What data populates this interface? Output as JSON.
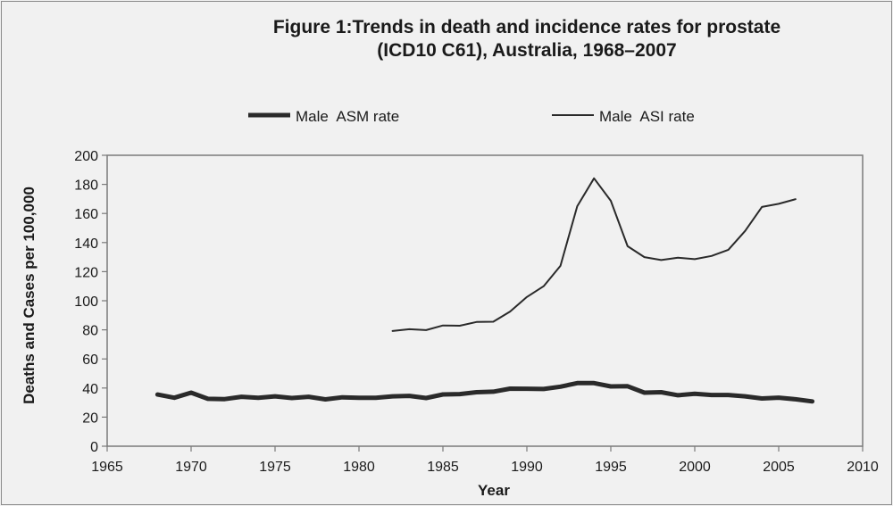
{
  "chart_data": {
    "type": "line",
    "title": [
      "Figure 1:Trends in death and incidence rates for prostate",
      "(ICD10 C61), Australia, 1968–2007"
    ],
    "xlabel": "Year",
    "ylabel": "Deaths and Cases per 100,000",
    "xlim": [
      1965,
      2010
    ],
    "ylim": [
      0,
      200
    ],
    "xticks": [
      1965,
      1970,
      1975,
      1980,
      1985,
      1990,
      1995,
      2000,
      2005,
      2010
    ],
    "yticks": [
      0,
      20,
      40,
      60,
      80,
      100,
      120,
      140,
      160,
      180,
      200
    ],
    "legend_position": "top",
    "series": [
      {
        "name": "Male  ASM rate",
        "color": "#2a2a2a",
        "x": [
          1968,
          1969,
          1970,
          1971,
          1972,
          1973,
          1974,
          1975,
          1976,
          1977,
          1978,
          1979,
          1980,
          1981,
          1982,
          1983,
          1984,
          1985,
          1986,
          1987,
          1988,
          1989,
          1990,
          1991,
          1992,
          1993,
          1994,
          1995,
          1996,
          1997,
          1998,
          1999,
          2000,
          2001,
          2002,
          2003,
          2004,
          2005,
          2006,
          2007
        ],
        "y": [
          35.5,
          33.3,
          36.8,
          32.6,
          32.4,
          34.0,
          33.3,
          34.3,
          33.1,
          34.0,
          32.2,
          33.6,
          33.3,
          33.3,
          34.3,
          34.6,
          33.1,
          35.6,
          35.8,
          37.1,
          37.5,
          39.6,
          39.5,
          39.3,
          40.9,
          43.4,
          43.4,
          41.1,
          41.2,
          36.8,
          37.1,
          35.0,
          36.0,
          35.2,
          35.2,
          34.3,
          32.8,
          33.4,
          32.3,
          30.8
        ]
      },
      {
        "name": "Male  ASI rate",
        "color": "#2a2a2a",
        "x": [
          1982,
          1983,
          1984,
          1985,
          1986,
          1987,
          1988,
          1989,
          1990,
          1991,
          1992,
          1993,
          1994,
          1995,
          1996,
          1997,
          1998,
          1999,
          2000,
          2001,
          2002,
          2003,
          2004,
          2005,
          2006
        ],
        "y": [
          79.2,
          80.4,
          79.8,
          83.0,
          82.8,
          85.4,
          85.6,
          92.6,
          102.6,
          110.0,
          124.0,
          165.0,
          184.2,
          168.7,
          137.5,
          130.0,
          128.0,
          129.6,
          128.6,
          130.8,
          135.0,
          148.0,
          164.5,
          166.6,
          169.8
        ]
      }
    ]
  }
}
